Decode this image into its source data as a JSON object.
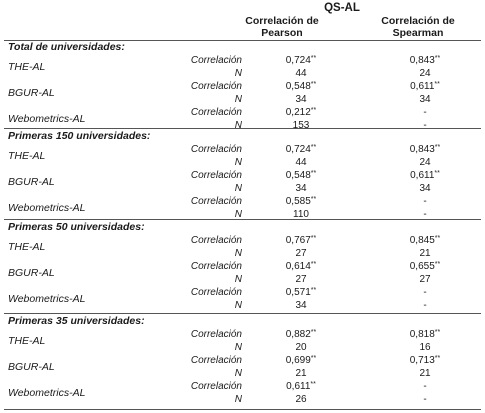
{
  "header": {
    "group": "QS-AL",
    "pearson_line1": "Correlación de",
    "pearson_line2": "Pearson",
    "spearman_line1": "Correlación de",
    "spearman_line2": "Spearman"
  },
  "labels": {
    "correlation": "Correlación",
    "n": "N"
  },
  "sections": [
    {
      "title": "Total de universidades:",
      "rows": [
        {
          "name": "THE-AL",
          "pearson": "0,724**",
          "pearson_n": "44",
          "spearman": "0,843**",
          "spearman_n": "24"
        },
        {
          "name": "BGUR-AL",
          "pearson": "0,548**",
          "pearson_n": "34",
          "spearman": "0,611**",
          "spearman_n": "34"
        },
        {
          "name": "Webometrics-AL",
          "pearson": "0,212**",
          "pearson_n": "153",
          "spearman": "-",
          "spearman_n": "-"
        }
      ]
    },
    {
      "title": "Primeras 150 universidades:",
      "rows": [
        {
          "name": "THE-AL",
          "pearson": "0,724**",
          "pearson_n": "44",
          "spearman": "0,843**",
          "spearman_n": "24"
        },
        {
          "name": "BGUR-AL",
          "pearson": "0,548**",
          "pearson_n": "34",
          "spearman": "0,611**",
          "spearman_n": "34"
        },
        {
          "name": "Webometrics-AL",
          "pearson": "0,585**",
          "pearson_n": "110",
          "spearman": "-",
          "spearman_n": "-"
        }
      ]
    },
    {
      "title": "Primeras 50 universidades:",
      "rows": [
        {
          "name": "THE-AL",
          "pearson": "0,767**",
          "pearson_n": "27",
          "spearman": "0,845**",
          "spearman_n": "21"
        },
        {
          "name": "BGUR-AL",
          "pearson": "0,614**",
          "pearson_n": "27",
          "spearman": "0,655**",
          "spearman_n": "27"
        },
        {
          "name": "Webometrics-AL",
          "pearson": "0,571**",
          "pearson_n": "34",
          "spearman": "-",
          "spearman_n": "-"
        }
      ]
    },
    {
      "title": "Primeras 35 universidades:",
      "rows": [
        {
          "name": "THE-AL",
          "pearson": "0,882**",
          "pearson_n": "20",
          "spearman": "0,818**",
          "spearman_n": "16"
        },
        {
          "name": "BGUR-AL",
          "pearson": "0,699**",
          "pearson_n": "21",
          "spearman": "0,713**",
          "spearman_n": "21"
        },
        {
          "name": "Webometrics-AL",
          "pearson": "0,611**",
          "pearson_n": "26",
          "spearman": "-",
          "spearman_n": "-"
        }
      ]
    }
  ]
}
